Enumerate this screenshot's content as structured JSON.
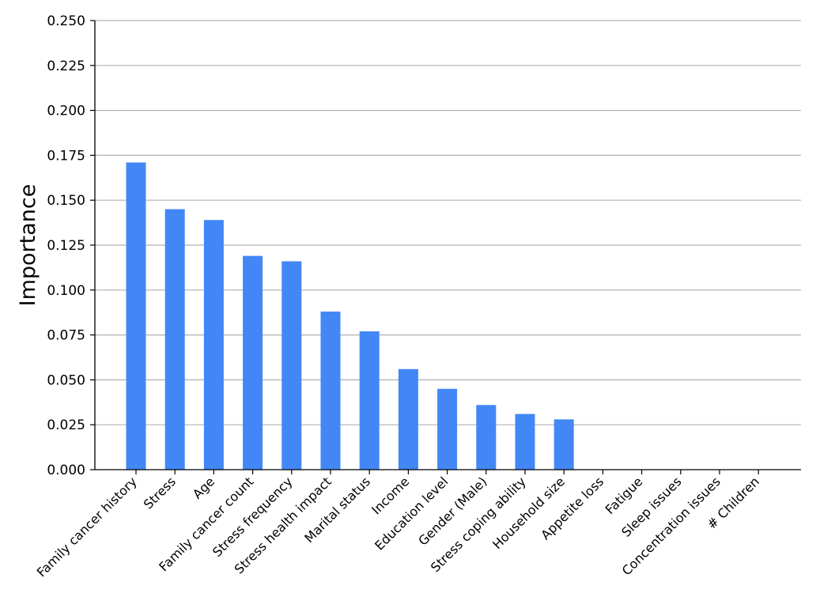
{
  "chart_data": {
    "type": "bar",
    "title": "",
    "xlabel": "",
    "ylabel": "Importance",
    "ylim": [
      0,
      0.25
    ],
    "yticks": [
      "0.000",
      "0.025",
      "0.050",
      "0.075",
      "0.100",
      "0.125",
      "0.150",
      "0.175",
      "0.200",
      "0.225",
      "0.250"
    ],
    "grid": "horizontal",
    "bar_color": "#4287f5",
    "categories": [
      "Family cancer history",
      "Stress",
      "Age",
      "Family cancer count",
      "Stress frequency",
      "Stress health impact",
      "Marital status",
      "Income",
      "Education level",
      "Gender (Male)",
      "Stress coping ability",
      "Household size",
      "Appetite loss",
      "Fatigue",
      "Sleep issues",
      "Concentration issues",
      "# Children"
    ],
    "values": [
      0.171,
      0.145,
      0.139,
      0.119,
      0.116,
      0.088,
      0.077,
      0.056,
      0.045,
      0.036,
      0.031,
      0.028,
      0,
      0,
      0,
      0,
      0
    ]
  }
}
